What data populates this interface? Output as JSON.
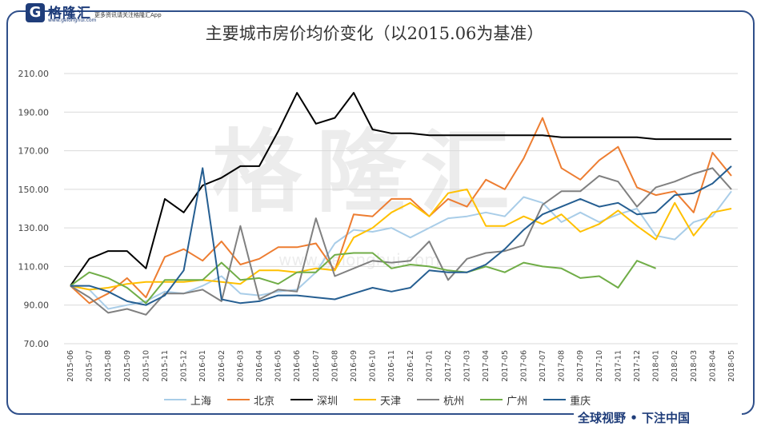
{
  "brand": {
    "logo_letter": "G",
    "name": "格隆汇",
    "url": "www.gelonghui.com",
    "slogan": "更多资讯请关注格隆汇App"
  },
  "footer": "全球视野 • 下注中国",
  "watermark": {
    "text": "格隆汇",
    "url": "www.gelonghui.com"
  },
  "chart_data": {
    "type": "line",
    "title": "主要城市房价均价变化（以2015.06为基准）",
    "xlabel": "",
    "ylabel": "",
    "ylim": [
      70,
      210
    ],
    "yticks": [
      "70.00",
      "90.00",
      "110.00",
      "130.00",
      "150.00",
      "170.00",
      "190.00",
      "210.00"
    ],
    "grid": "horizontal",
    "legend": "bottom",
    "x": [
      "2015-06",
      "2015-07",
      "2015-08",
      "2015-09",
      "2015-10",
      "2015-11",
      "2015-12",
      "2016-01",
      "2016-02",
      "2016-03",
      "2016-04",
      "2016-05",
      "2016-06",
      "2016-07",
      "2016-08",
      "2016-09",
      "2016-10",
      "2016-11",
      "2016-12",
      "2017-01",
      "2017-02",
      "2017-03",
      "2017-04",
      "2017-05",
      "2017-06",
      "2017-07",
      "2017-08",
      "2017-09",
      "2017-10",
      "2017-11",
      "2017-12",
      "2018-01",
      "2018-02",
      "2018-03",
      "2018-04",
      "2018-05"
    ],
    "series": [
      {
        "name": "上海",
        "color": "#a9cde8",
        "values": [
          100,
          98,
          88,
          90,
          92,
          97,
          96,
          100,
          105,
          96,
          95,
          97,
          98,
          107,
          122,
          129,
          128,
          130,
          125,
          130,
          135,
          136,
          138,
          136,
          146,
          143,
          133,
          138,
          133,
          137,
          140,
          126,
          124,
          133,
          136,
          149
        ]
      },
      {
        "name": "北京",
        "color": "#ed7d31",
        "values": [
          100,
          91,
          96,
          104,
          94,
          115,
          119,
          113,
          123,
          111,
          114,
          120,
          120,
          122,
          108,
          137,
          136,
          145,
          145,
          136,
          145,
          141,
          155,
          150,
          166,
          187,
          161,
          155,
          165,
          172,
          151,
          147,
          149,
          138,
          169,
          157
        ]
      },
      {
        "name": "深圳",
        "color": "#000000",
        "values": [
          100,
          114,
          118,
          118,
          109,
          145,
          138,
          152,
          156,
          162,
          162,
          180,
          200,
          184,
          187,
          200,
          181,
          179,
          179,
          178,
          178,
          178,
          178,
          178,
          178,
          178,
          177,
          177,
          177,
          177,
          177,
          176,
          176,
          176,
          176,
          176
        ]
      },
      {
        "name": "天津",
        "color": "#ffc000",
        "values": [
          100,
          98,
          99,
          101,
          102,
          102,
          102,
          103,
          102,
          101,
          108,
          108,
          107,
          109,
          108,
          125,
          130,
          138,
          143,
          136,
          148,
          150,
          131,
          131,
          136,
          132,
          137,
          128,
          132,
          139,
          131,
          124,
          143,
          126,
          138,
          140
        ]
      },
      {
        "name": "杭州",
        "color": "#808080",
        "values": [
          100,
          94,
          86,
          88,
          85,
          96,
          96,
          98,
          92,
          131,
          93,
          98,
          97,
          135,
          105,
          109,
          113,
          112,
          113,
          123,
          103,
          114,
          117,
          118,
          121,
          142,
          149,
          149,
          157,
          154,
          141,
          151,
          154,
          158,
          161,
          150
        ]
      },
      {
        "name": "广州",
        "color": "#70ad47",
        "values": [
          100,
          107,
          104,
          99,
          91,
          103,
          103,
          103,
          112,
          103,
          104,
          101,
          107,
          107,
          116,
          117,
          117,
          109,
          111,
          110,
          108,
          107,
          110,
          107,
          112,
          110,
          109,
          104,
          105,
          99,
          113,
          109,
          null,
          null,
          null,
          null
        ]
      },
      {
        "name": "重庆",
        "color": "#255e91",
        "values": [
          100,
          100,
          97,
          92,
          90,
          95,
          108,
          161,
          93,
          91,
          92,
          95,
          95,
          94,
          93,
          96,
          99,
          97,
          99,
          108,
          107,
          107,
          111,
          119,
          129,
          137,
          141,
          145,
          141,
          143,
          137,
          138,
          147,
          148,
          153,
          162
        ]
      }
    ]
  }
}
